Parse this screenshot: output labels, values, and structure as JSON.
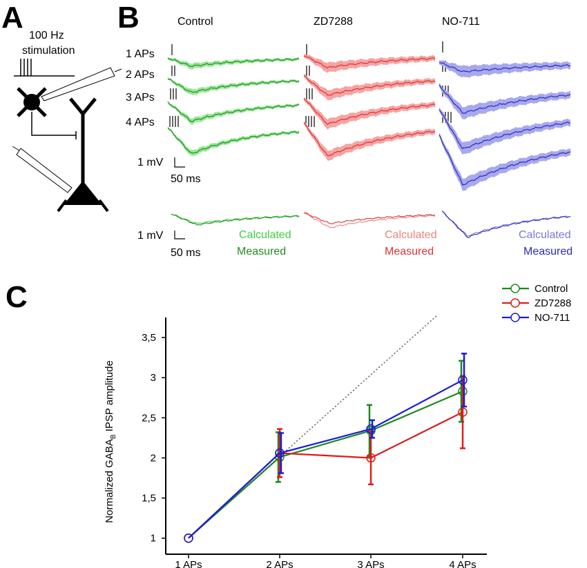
{
  "panels": {
    "A": {
      "letter": "A",
      "stim_line1": "100 Hz",
      "stim_line2": "stimulation"
    },
    "B": {
      "letter": "B",
      "columns": [
        "Control",
        "ZD7288",
        "NO-711"
      ],
      "rows": [
        "1 APs",
        "2 APs",
        "3 APs",
        "4 APs"
      ],
      "scale_voltage": "1 mV",
      "scale_time": "50 ms",
      "legend_calculated": "Calculated",
      "legend_measured": "Measured",
      "colors": {
        "control_dark": "#1f8f1f",
        "control_light": "#3ccf3c",
        "control_band": "#9ae89a",
        "zd_dark": "#e03030",
        "zd_light": "#f08080",
        "zd_band": "#f6a4a4",
        "no_dark": "#2a2ab8",
        "no_light": "#7878e0",
        "no_band": "#a8a8ee"
      }
    },
    "C": {
      "letter": "C"
    }
  },
  "chart_data": {
    "type": "line",
    "ylabel_main": "Normalized GABA",
    "ylabel_sub": "B",
    "ylabel_rest": " IPSP amplitude",
    "categories": [
      "1 APs",
      "2 APs",
      "3 APs",
      "4 APs"
    ],
    "ylim": [
      0.8,
      3.75
    ],
    "yticks": [
      "1",
      "1,5",
      "2",
      "2,5",
      "3",
      "3,5"
    ],
    "ytick_values": [
      1,
      1.5,
      2,
      2.5,
      3,
      3.5
    ],
    "series": [
      {
        "name": "Control",
        "color": "#1a8a1a",
        "values": [
          1,
          2.01,
          2.34,
          2.83
        ],
        "err": [
          0,
          0.31,
          0.32,
          0.38
        ]
      },
      {
        "name": "ZD7288",
        "color": "#e01a1a",
        "values": [
          1,
          2.06,
          2.0,
          2.57
        ],
        "err": [
          0,
          0.3,
          0.33,
          0.45
        ]
      },
      {
        "name": "NO-711",
        "color": "#1a1ae0",
        "values": [
          1,
          2.06,
          2.36,
          2.97
        ],
        "err": [
          0,
          0.25,
          0.11,
          0.33
        ]
      }
    ],
    "reference_line": {
      "style": "dotted",
      "x": [
        0,
        3
      ],
      "y": [
        1,
        4
      ]
    },
    "legend_position": "top-right",
    "grid": false
  }
}
